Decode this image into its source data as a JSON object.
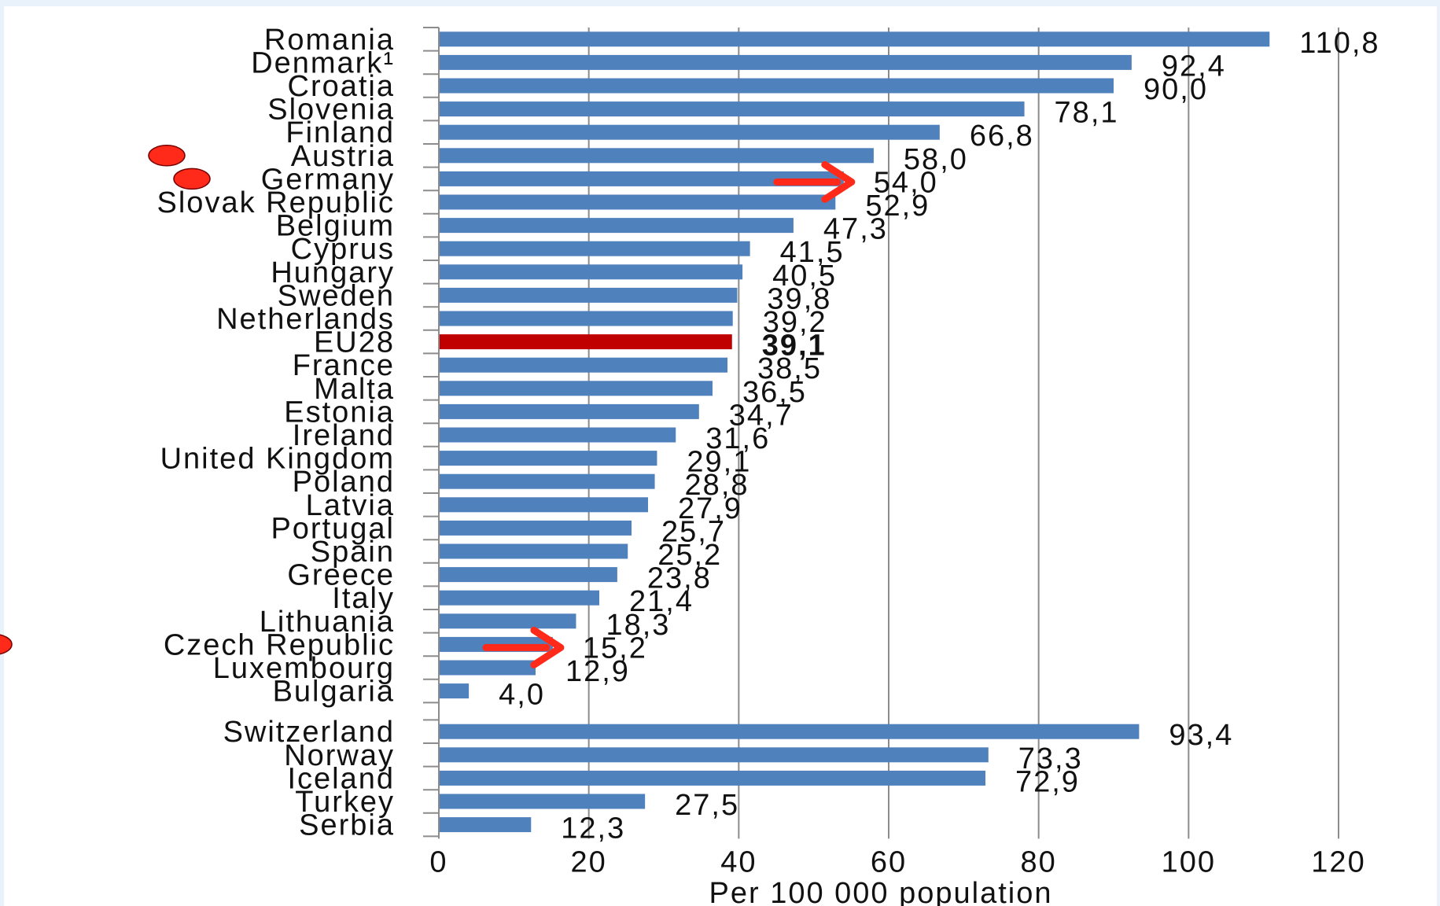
{
  "chart_data": {
    "type": "bar",
    "orientation": "horizontal",
    "xlabel": "Per 100 000 population",
    "ylabel": "",
    "xlim": [
      0,
      120
    ],
    "x_ticks": [
      "0",
      "20",
      "40",
      "60",
      "80",
      "100",
      "120"
    ],
    "grid": "vertical",
    "groups": [
      {
        "categories": [
          {
            "label": "Romania",
            "value": 110.8,
            "value_label": "110,8"
          },
          {
            "label": "Denmark¹",
            "value": 92.4,
            "value_label": "92,4"
          },
          {
            "label": "Croatia",
            "value": 90.0,
            "value_label": "90,0"
          },
          {
            "label": "Slovenia",
            "value": 78.1,
            "value_label": "78,1"
          },
          {
            "label": "Finland",
            "value": 66.8,
            "value_label": "66,8"
          },
          {
            "label": "Austria",
            "value": 58.0,
            "value_label": "58,0"
          },
          {
            "label": "Germany",
            "value": 54.0,
            "value_label": "54,0"
          },
          {
            "label": "Slovak Republic",
            "value": 52.9,
            "value_label": "52,9"
          },
          {
            "label": "Belgium",
            "value": 47.3,
            "value_label": "47,3"
          },
          {
            "label": "Cyprus",
            "value": 41.5,
            "value_label": "41,5"
          },
          {
            "label": "Hungary",
            "value": 40.5,
            "value_label": "40,5"
          },
          {
            "label": "Sweden",
            "value": 39.8,
            "value_label": "39,8"
          },
          {
            "label": "Netherlands",
            "value": 39.2,
            "value_label": "39,2"
          },
          {
            "label": "EU28",
            "value": 39.1,
            "value_label": "39,1"
          },
          {
            "label": "France",
            "value": 38.5,
            "value_label": "38,5"
          },
          {
            "label": "Malta",
            "value": 36.5,
            "value_label": "36,5"
          },
          {
            "label": "Estonia",
            "value": 34.7,
            "value_label": "34,7"
          },
          {
            "label": "Ireland",
            "value": 31.6,
            "value_label": "31,6"
          },
          {
            "label": "United Kingdom",
            "value": 29.1,
            "value_label": "29,1"
          },
          {
            "label": "Poland",
            "value": 28.8,
            "value_label": "28,8"
          },
          {
            "label": "Latvia",
            "value": 27.9,
            "value_label": "27,9"
          },
          {
            "label": "Portugal",
            "value": 25.7,
            "value_label": "25,7"
          },
          {
            "label": "Spain",
            "value": 25.2,
            "value_label": "25,2"
          },
          {
            "label": "Greece",
            "value": 23.8,
            "value_label": "23,8"
          },
          {
            "label": "Italy",
            "value": 21.4,
            "value_label": "21,4"
          },
          {
            "label": "Lithuania",
            "value": 18.3,
            "value_label": "18,3"
          },
          {
            "label": "Czech Republic",
            "value": 15.2,
            "value_label": "15,2"
          },
          {
            "label": "Luxembourg",
            "value": 12.9,
            "value_label": "12,9"
          },
          {
            "label": "Bulgaria",
            "value": 4.0,
            "value_label": "4,0"
          }
        ]
      },
      {
        "categories": [
          {
            "label": "Switzerland",
            "value": 93.4,
            "value_label": "93,4"
          },
          {
            "label": "Norway",
            "value": 73.3,
            "value_label": "73,3"
          },
          {
            "label": "Iceland",
            "value": 72.9,
            "value_label": "72,9"
          },
          {
            "label": "Turkey",
            "value": 27.5,
            "value_label": "27,5"
          },
          {
            "label": "Serbia",
            "value": 12.3,
            "value_label": "12,3"
          }
        ]
      }
    ],
    "highlight": {
      "category": "EU28",
      "color": "#c00000",
      "value_label_bold": true
    },
    "bar_color": "#4f81bd",
    "grid_color": "#8c8c8c",
    "annotations": {
      "marker_color": "#ff2a1a",
      "dot_markers": [
        "Austria",
        "Germany",
        "Czech Republic"
      ],
      "arrow_markers": [
        "Germany",
        "Czech Republic"
      ]
    }
  }
}
